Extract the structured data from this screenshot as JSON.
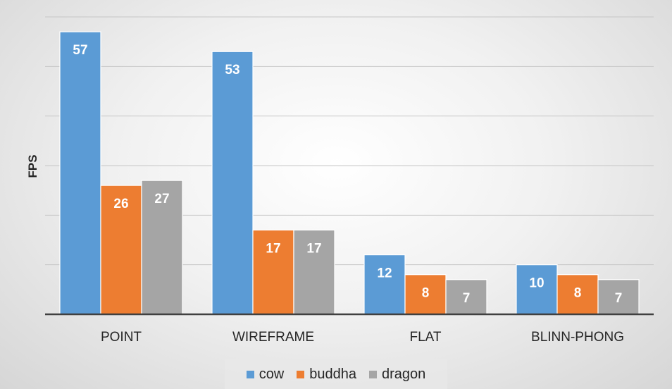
{
  "chart_data": {
    "type": "bar",
    "title": "",
    "xlabel": "",
    "ylabel": "FPS",
    "ylim": [
      0,
      60
    ],
    "gridlines": [
      10,
      20,
      30,
      40,
      50,
      60
    ],
    "grid": true,
    "legend_position": "bottom",
    "categories": [
      "POINT",
      "WIREFRAME",
      "FLAT",
      "BLINN-PHONG"
    ],
    "series": [
      {
        "name": "cow",
        "color": "#5b9bd5",
        "values": [
          57,
          53,
          12,
          10
        ]
      },
      {
        "name": "buddha",
        "color": "#ed7d31",
        "values": [
          26,
          17,
          8,
          8
        ]
      },
      {
        "name": "dragon",
        "color": "#a5a5a5",
        "values": [
          27,
          17,
          7,
          7
        ]
      }
    ]
  }
}
